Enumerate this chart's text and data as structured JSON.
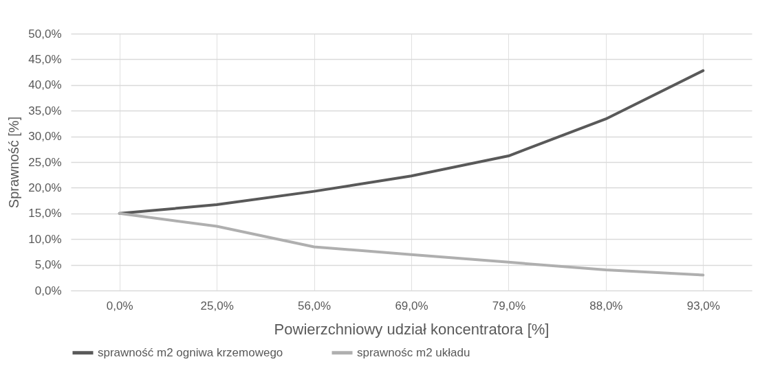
{
  "chart_data": {
    "type": "line",
    "xlabel": "Powierzchniowy udział koncentratora [%]",
    "ylabel": "Sprawność [%]",
    "categories": [
      "0,0%",
      "25,0%",
      "56,0%",
      "69,0%",
      "79,0%",
      "88,0%",
      "93,0%"
    ],
    "series": [
      {
        "name": "sprawność m2 ogniwa krzemowego",
        "color": "#595959",
        "values": [
          15.0,
          16.7,
          19.3,
          22.3,
          26.2,
          33.4,
          42.8
        ]
      },
      {
        "name": "sprawnośc m2 układu",
        "color": "#afafaf",
        "values": [
          15.0,
          12.5,
          8.5,
          7.0,
          5.5,
          4.0,
          3.0
        ]
      }
    ],
    "ylim": [
      0,
      50
    ],
    "yticks": [
      {
        "value": 0,
        "label": "0,0%"
      },
      {
        "value": 5,
        "label": "5,0%"
      },
      {
        "value": 10,
        "label": "10,0%"
      },
      {
        "value": 15,
        "label": "15,0%"
      },
      {
        "value": 20,
        "label": "20,0%"
      },
      {
        "value": 25,
        "label": "25,0%"
      },
      {
        "value": 30,
        "label": "30,0%"
      },
      {
        "value": 35,
        "label": "35,0%"
      },
      {
        "value": 40,
        "label": "40,0%"
      },
      {
        "value": 45,
        "label": "45,0%"
      },
      {
        "value": 50,
        "label": "50,0%"
      }
    ],
    "grid": true,
    "legend": "bottom",
    "marker": "none",
    "line_style": "solid"
  }
}
